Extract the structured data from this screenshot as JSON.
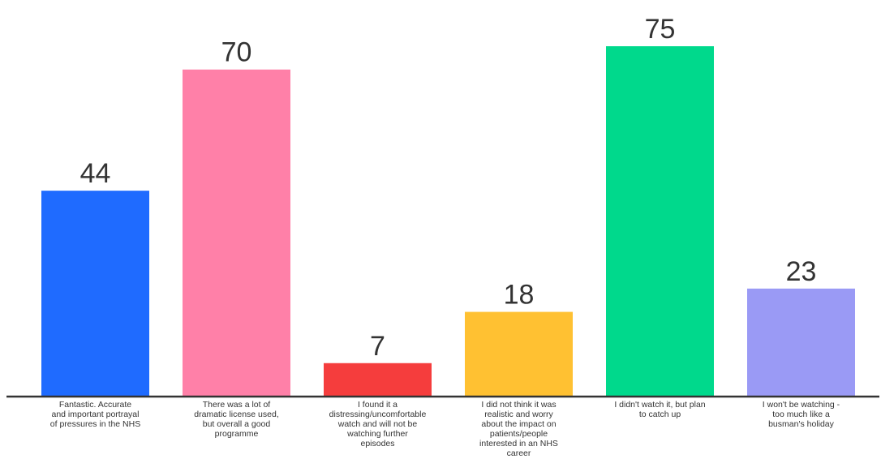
{
  "chart_data": {
    "type": "bar",
    "categories": [
      [
        "Fantastic. Accurate",
        "and important portrayal",
        "of pressures in the NHS"
      ],
      [
        "There was a lot of",
        "dramatic license used,",
        "but overall a good",
        "programme"
      ],
      [
        "I found it a",
        "distressing/uncomfortable",
        "watch and will not be",
        "watching further",
        "episodes"
      ],
      [
        "I did not think it was",
        "realistic and worry",
        "about the impact on",
        "patients/people",
        "interested in an NHS",
        "career"
      ],
      [
        "I didn't watch it, but plan",
        "to catch up"
      ],
      [
        "I won't be watching -",
        "too much like a",
        "busman's holiday"
      ]
    ],
    "values": [
      44,
      70,
      7,
      18,
      75,
      23
    ],
    "colors": [
      "#1F6BFF",
      "#FF80A8",
      "#F53D3D",
      "#FFC132",
      "#00D98C",
      "#9A9AF5"
    ],
    "ylim": [
      0,
      75
    ],
    "grid": false,
    "axis_color": "#333333"
  }
}
